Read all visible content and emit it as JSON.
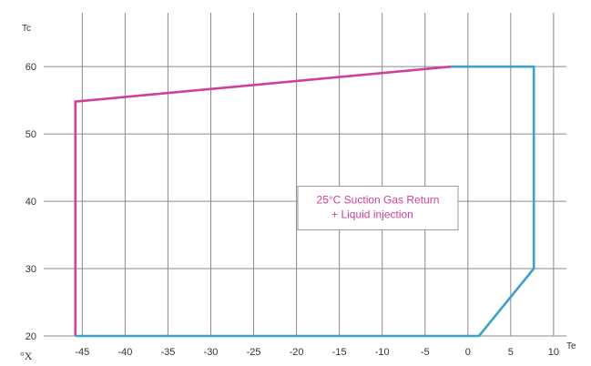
{
  "chart_data": {
    "type": "line",
    "title": "",
    "xlabel": "Te",
    "ylabel": "Tc",
    "unit_label": "°X",
    "xlim": [
      -49.5,
      11.5
    ],
    "ylim": [
      20,
      68
    ],
    "grid": true,
    "x_ticks": [
      -45,
      -40,
      -35,
      -30,
      -25,
      -20,
      -15,
      -10,
      -5,
      0,
      5,
      10
    ],
    "y_ticks": [
      20,
      30,
      40,
      50,
      60
    ],
    "series": [
      {
        "color": "#d0409a",
        "points": [
          [
            -45.8,
            20
          ],
          [
            -45.8,
            54.8
          ],
          [
            -2,
            60
          ]
        ]
      },
      {
        "color": "#3fa1c7",
        "points": [
          [
            -2,
            60
          ],
          [
            7.7,
            60
          ],
          [
            7.7,
            30
          ],
          [
            1.3,
            20
          ],
          [
            -45.8,
            20
          ]
        ]
      }
    ],
    "annotations": [
      {
        "lines": [
          "25°C Suction Gas Return",
          "+ Liquid injection"
        ],
        "color": "#d0409a",
        "x": -10.5,
        "y": 39
      }
    ]
  }
}
